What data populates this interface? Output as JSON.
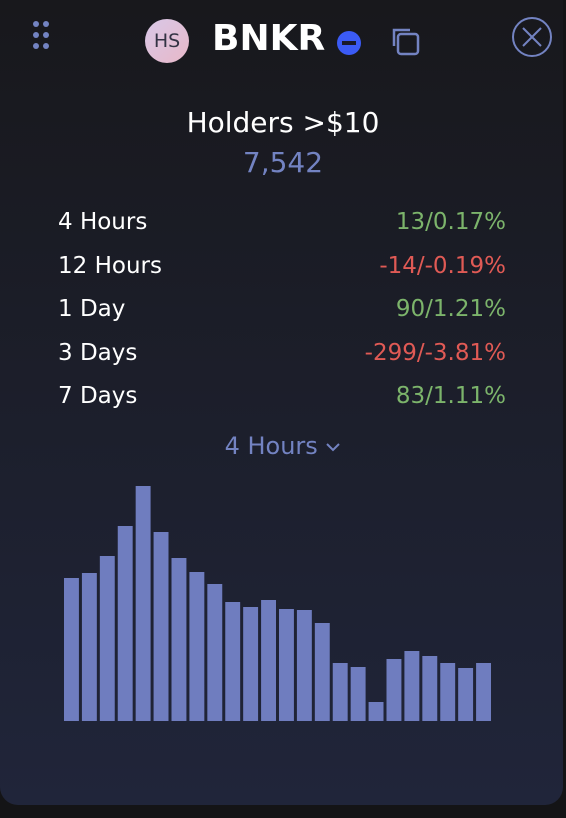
{
  "header": {
    "avatar": "HS",
    "token": "BNKR"
  },
  "holders": {
    "title": "Holders >$10",
    "count": "7,542"
  },
  "changes": [
    {
      "label": "4 Hours",
      "value": "13/0.17%",
      "color": "#7cb46b"
    },
    {
      "label": "12 Hours",
      "value": "-14/-0.19%",
      "color": "#e05a55"
    },
    {
      "label": "1 Day",
      "value": "90/1.21%",
      "color": "#7cb46b"
    },
    {
      "label": "3 Days",
      "value": "-299/-3.81%",
      "color": "#e05a55"
    },
    {
      "label": "7 Days",
      "value": "83/1.11%",
      "color": "#7cb46b"
    }
  ],
  "selector": "4 Hours",
  "chart_data": {
    "type": "bar",
    "color": "#6f7dbf",
    "values": [
      143,
      148,
      165,
      195,
      235,
      189,
      163,
      149,
      137,
      119,
      114,
      121,
      112,
      111,
      98,
      58,
      54,
      19,
      62,
      70,
      65,
      58,
      53,
      58
    ]
  }
}
